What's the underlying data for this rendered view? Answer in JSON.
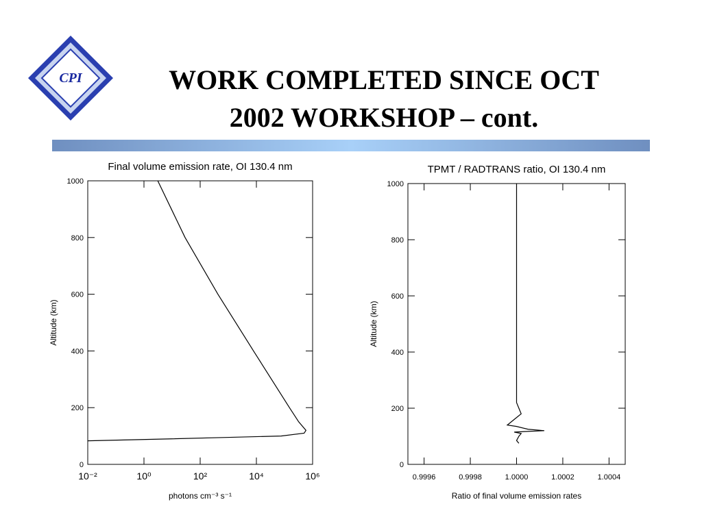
{
  "header": {
    "logo": "CPI",
    "title_lines": [
      "WORK COMPLETED SINCE OCT",
      "2002 WORKSHOP – cont."
    ]
  },
  "chart_data": [
    {
      "type": "line",
      "title": "Final volume emission rate, OI 130.4 nm",
      "x_label": "photons cm⁻³ s⁻¹",
      "y_label": "Altitude (km)",
      "xscale": "log",
      "xlim": [
        0.01,
        1000000
      ],
      "ylim": [
        0,
        1000
      ],
      "xticks": [
        {
          "value": 0.01,
          "label": "10⁻²"
        },
        {
          "value": 1,
          "label": "10⁰"
        },
        {
          "value": 100,
          "label": "10²"
        },
        {
          "value": 10000,
          "label": "10⁴"
        },
        {
          "value": 1000000,
          "label": "10⁶"
        }
      ],
      "yticks": [
        0,
        200,
        400,
        600,
        800,
        1000
      ],
      "grid": false,
      "color": "#000000",
      "x": [
        3.1,
        29,
        427,
        7900,
        150000,
        320000,
        580000,
        500000,
        76000,
        850,
        9.5,
        0.01
      ],
      "y": [
        1000,
        800,
        600,
        400,
        200,
        150,
        120,
        110,
        100,
        95,
        90,
        83
      ]
    },
    {
      "type": "line",
      "title": "TPMT / RADTRANS ratio, OI 130.4 nm",
      "x_label": "Ratio of final volume emission rates",
      "y_label": "Altitude (km)",
      "xscale": "linear",
      "xlim": [
        0.99953,
        1.00047
      ],
      "ylim": [
        0,
        1000
      ],
      "xticks": [
        0.9996,
        0.9998,
        {
          "value": 1,
          "label": "1.0000"
        },
        1.0002,
        1.0004
      ],
      "yticks": [
        0,
        200,
        400,
        600,
        800,
        1000
      ],
      "grid": false,
      "color": "#000000",
      "x": [
        1.0,
        1.0,
        1.00001,
        1.00002,
        0.99999,
        0.99996,
        1.0,
        1.00005,
        1.00012,
        1.00004,
        0.99999,
        1.00002,
        1.00001,
        1.0,
        1.00001
      ],
      "y": [
        1000,
        220,
        200,
        180,
        160,
        140,
        135,
        125,
        120,
        117,
        115,
        110,
        100,
        85,
        75
      ]
    }
  ]
}
